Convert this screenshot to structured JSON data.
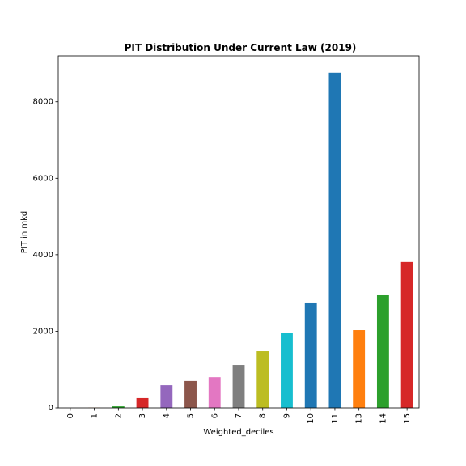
{
  "chart_data": {
    "type": "bar",
    "title": "PIT Distribution Under Current Law (2019)",
    "xlabel": "Weighted_deciles",
    "ylabel": "PIT in mkd",
    "categories": [
      "0",
      "1",
      "2",
      "3",
      "4",
      "5",
      "6",
      "7",
      "8",
      "9",
      "10",
      "11",
      "13",
      "14",
      "15"
    ],
    "values": [
      0,
      5,
      40,
      255,
      590,
      700,
      800,
      1120,
      1480,
      1950,
      2750,
      8760,
      2030,
      2940,
      3810
    ],
    "colors": [
      "#1f77b4",
      "#ff7f0e",
      "#2ca02c",
      "#d62728",
      "#9467bd",
      "#8c564b",
      "#e377c2",
      "#7f7f7f",
      "#bcbd22",
      "#17becf",
      "#1f77b4",
      "#1f77b4",
      "#ff7f0e",
      "#2ca02c",
      "#d62728"
    ],
    "ylim": [
      0,
      9200
    ],
    "yticks": [
      0,
      2000,
      4000,
      6000,
      8000
    ],
    "ytick_labels": [
      "0",
      "2000",
      "4000",
      "6000",
      "8000"
    ],
    "grid": false,
    "legend": "none"
  }
}
